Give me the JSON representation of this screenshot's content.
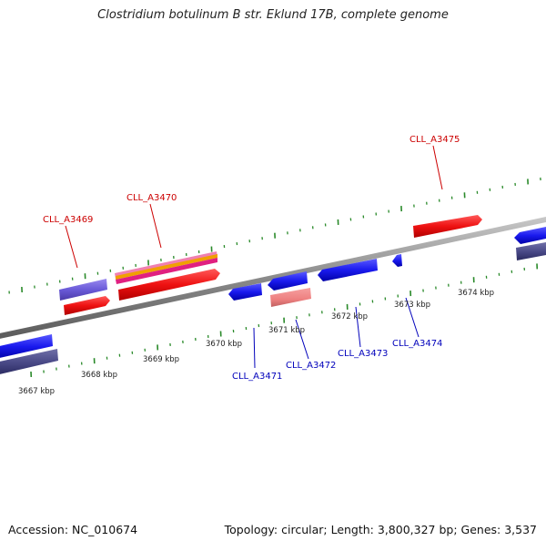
{
  "title": "Clostridium botulinum B str. Eklund 17B, complete genome",
  "footer": {
    "accession": "Accession: NC_010674",
    "summary": "Topology: circular; Length: 3,800,327 bp; Genes: 3,537"
  },
  "colors": {
    "backbone": "#8a8a8a",
    "tick": "#2a8a2a",
    "label_forward": "#cc0000",
    "label_reverse": "#0000bb",
    "gene_forward": "#ee1111",
    "gene_reverse": "#1a1aee"
  },
  "scale_ticks": [
    {
      "kbp": 3667,
      "label": "3667 kbp"
    },
    {
      "kbp": 3668,
      "label": "3668 kbp"
    },
    {
      "kbp": 3669,
      "label": "3669 kbp"
    },
    {
      "kbp": 3670,
      "label": "3670 kbp"
    },
    {
      "kbp": 3671,
      "label": "3671 kbp"
    },
    {
      "kbp": 3672,
      "label": "3672 kbp"
    },
    {
      "kbp": 3673,
      "label": "3673 kbp"
    },
    {
      "kbp": 3674,
      "label": "3674 kbp"
    }
  ],
  "gene_labels": [
    {
      "name": "CLL_A3469",
      "strand": "forward"
    },
    {
      "name": "CLL_A3470",
      "strand": "forward"
    },
    {
      "name": "CLL_A3475",
      "strand": "forward"
    },
    {
      "name": "CLL_A3471",
      "strand": "reverse"
    },
    {
      "name": "CLL_A3472",
      "strand": "reverse"
    },
    {
      "name": "CLL_A3473",
      "strand": "reverse"
    },
    {
      "name": "CLL_A3474",
      "strand": "reverse"
    }
  ]
}
